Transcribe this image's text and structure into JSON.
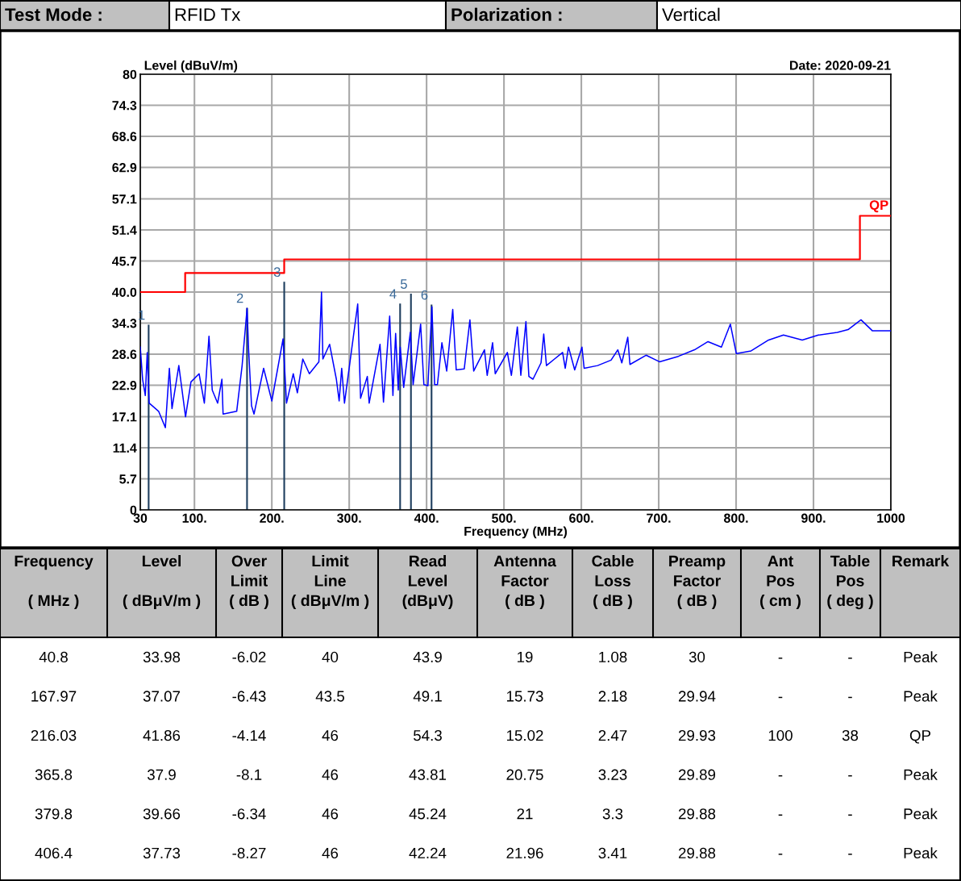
{
  "chart_data": [
    {
      "type": "other",
      "cell_labels": [
        [
          "Test Mode :",
          "RFID Tx",
          "Polarization :",
          "Vertical"
        ]
      ]
    },
    {
      "type": "line",
      "xlabel": "Frequency (MHz)",
      "ylabel": "Level (dBuV/m)",
      "annotations": [
        "Date: 2020-09-21",
        {
          "text": "1",
          "x": 40.8,
          "y": 34.0
        },
        {
          "text": "2",
          "x": 167.97,
          "y": 37.1
        },
        {
          "text": "3",
          "x": 216.03,
          "y": 41.9
        },
        {
          "text": "4",
          "x": 365.8,
          "y": 37.9
        },
        {
          "text": "5",
          "x": 379.8,
          "y": 39.7
        },
        {
          "text": "6",
          "x": 406.4,
          "y": 37.7
        }
      ],
      "xlim": [
        30,
        1000
      ],
      "xticks": [
        30,
        {
          "value": 100,
          "label": "100."
        },
        {
          "value": 200,
          "label": "200."
        },
        {
          "value": 300,
          "label": "300."
        },
        {
          "value": 400,
          "label": "400."
        },
        {
          "value": 500,
          "label": "500."
        },
        {
          "value": 600,
          "label": "600."
        },
        {
          "value": 700,
          "label": "700."
        },
        {
          "value": 800,
          "label": "800."
        },
        {
          "value": 900,
          "label": "900."
        },
        1000
      ],
      "ylim": [
        0,
        80
      ],
      "yticks": [
        0,
        5.7,
        11.4,
        17.1,
        22.9,
        28.6,
        34.3,
        {
          "value": 40,
          "label": "40.0"
        },
        45.7,
        51.4,
        57.1,
        62.9,
        68.6,
        74.3,
        80
      ],
      "grid": true,
      "marker": "none",
      "line_style": "solid",
      "series": [
        {
          "type": "line",
          "color": "#0000ff",
          "x": [
            30,
            33,
            36.5,
            39,
            41.5,
            53.7,
            62.4,
            67.6,
            71,
            79.8,
            88.5,
            95.5,
            106,
            112.8,
            118.8,
            123,
            130,
            135.5,
            137,
            154.6,
            161.6,
            168,
            170,
            173.8,
            177,
            189.4,
            200,
            214.5,
            219,
            227.7,
            233,
            240,
            248.5,
            260.8,
            264.2,
            266,
            274.7,
            283.4,
            287,
            290.3,
            293.9,
            311,
            314.7,
            323.4,
            325.8,
            339.8,
            344.3,
            352.3,
            356.5,
            360,
            363.4,
            365.9,
            370.4,
            379,
            382.6,
            392.3,
            396.5,
            401.7,
            406.9,
            410.4,
            414,
            419.8,
            426,
            433.8,
            438.3,
            448.7,
            456,
            460.9,
            474.8,
            478.3,
            485.3,
            488.7,
            504.4,
            509.6,
            517.3,
            521.8,
            528.4,
            532.2,
            537.5,
            547.9,
            551.4,
            554.9,
            565.3,
            575.8,
            579.2,
            583.4,
            591.4,
            600.8,
            603.6,
            621,
            638.4,
            647.1,
            652.3,
            660,
            662.8,
            683.6,
            701,
            725.4,
            746.3,
            763.7,
            781,
            792.6,
            800.3,
            819.4,
            842,
            861.2,
            885.5,
            906.4,
            930.8,
            944.7,
            961.4,
            976,
            1000
          ],
          "values": [
            29.9,
            24.0,
            21.0,
            28.9,
            19.6,
            18.1,
            15.1,
            26.0,
            18.6,
            26.5,
            17.1,
            23.5,
            25.0,
            19.6,
            31.9,
            22.0,
            19.6,
            24.0,
            17.6,
            18.1,
            26.5,
            37.0,
            29.4,
            19.1,
            17.6,
            26.0,
            20.0,
            31.4,
            19.6,
            25.0,
            21.5,
            27.7,
            25.0,
            27.2,
            40.0,
            27.7,
            30.4,
            24.0,
            20.0,
            26.0,
            19.6,
            37.8,
            20.5,
            24.5,
            19.6,
            30.4,
            19.8,
            35.6,
            21.0,
            32.4,
            22.0,
            29.9,
            22.5,
            32.6,
            23.0,
            34.1,
            23.0,
            22.8,
            37.3,
            23.0,
            23.0,
            30.7,
            25.5,
            36.8,
            25.7,
            25.9,
            34.9,
            25.5,
            29.4,
            24.7,
            30.7,
            25.0,
            28.9,
            24.7,
            33.6,
            24.7,
            34.6,
            24.5,
            24.0,
            27.0,
            32.3,
            26.5,
            27.7,
            28.9,
            26.0,
            29.9,
            25.7,
            29.9,
            26.0,
            26.5,
            27.5,
            29.4,
            27.0,
            31.7,
            26.7,
            28.4,
            27.2,
            28.2,
            29.4,
            30.9,
            29.9,
            34.1,
            28.7,
            29.2,
            31.2,
            32.1,
            31.2,
            32.1,
            32.6,
            33.1,
            34.9,
            32.9,
            32.9
          ]
        },
        {
          "type": "step",
          "name": "QP",
          "color": "#ff0000",
          "x": [
            30,
            88,
            216,
            960,
            1000
          ],
          "values": [
            40,
            43.5,
            46,
            54,
            54
          ]
        },
        {
          "type": "bar",
          "color": "#1f3f5f",
          "x": [
            40.8,
            167.97,
            216.03,
            365.8,
            379.8,
            406.4
          ],
          "values": [
            34.0,
            37.1,
            41.9,
            37.9,
            39.7,
            37.7
          ]
        }
      ]
    },
    {
      "type": "other",
      "categories": [
        "Frequency\n\n( MHz )",
        "Level\n\n( dBμV/m )",
        "Over\nLimit\n( dB )",
        "Limit\nLine\n( dBμV/m )",
        "Read\nLevel\n(dBμV)",
        "Antenna\nFactor\n( dB )",
        "Cable\nLoss\n( dB )",
        "Preamp\nFactor\n( dB )",
        "Ant\nPos\n( cm )",
        "Table\nPos\n( deg )",
        "Remark"
      ],
      "cell_labels": [
        [
          "40.8",
          "33.98",
          "-6.02",
          "40",
          "43.9",
          "19",
          "1.08",
          "30",
          "-",
          "-",
          "Peak"
        ],
        [
          "167.97",
          "37.07",
          "-6.43",
          "43.5",
          "49.1",
          "15.73",
          "2.18",
          "29.94",
          "-",
          "-",
          "Peak"
        ],
        [
          "216.03",
          "41.86",
          "-4.14",
          "46",
          "54.3",
          "15.02",
          "2.47",
          "29.93",
          "100",
          "38",
          "QP"
        ],
        [
          "365.8",
          "37.9",
          "-8.1",
          "46",
          "43.81",
          "20.75",
          "3.23",
          "29.89",
          "-",
          "-",
          "Peak"
        ],
        [
          "379.8",
          "39.66",
          "-6.34",
          "46",
          "45.24",
          "21",
          "3.3",
          "29.88",
          "-",
          "-",
          "Peak"
        ],
        [
          "406.4",
          "37.73",
          "-8.27",
          "46",
          "42.24",
          "21.96",
          "3.41",
          "29.88",
          "-",
          "-",
          "Peak"
        ]
      ]
    }
  ]
}
